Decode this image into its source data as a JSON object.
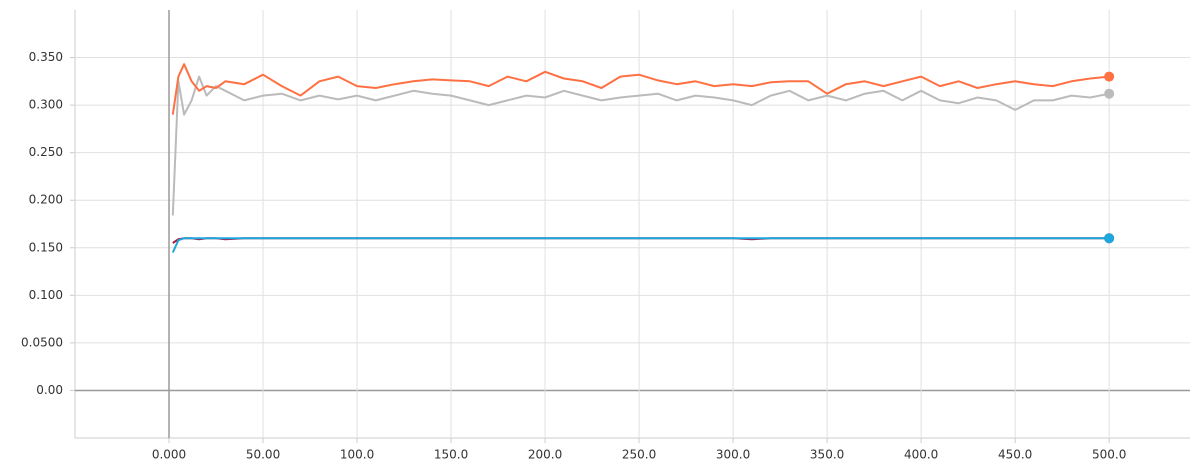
{
  "chart_data": {
    "type": "line",
    "x": [
      2,
      5,
      8,
      12,
      16,
      20,
      25,
      30,
      40,
      50,
      60,
      70,
      80,
      90,
      100,
      110,
      120,
      130,
      140,
      150,
      160,
      170,
      180,
      190,
      200,
      210,
      220,
      230,
      240,
      250,
      260,
      270,
      280,
      290,
      300,
      310,
      320,
      330,
      340,
      350,
      360,
      370,
      380,
      390,
      400,
      410,
      420,
      430,
      440,
      450,
      460,
      470,
      480,
      490,
      500
    ],
    "series": [
      {
        "color": "#bbbbbb",
        "values": [
          0.184,
          0.325,
          0.29,
          0.305,
          0.33,
          0.31,
          0.32,
          0.315,
          0.305,
          0.31,
          0.312,
          0.305,
          0.31,
          0.306,
          0.31,
          0.305,
          0.31,
          0.315,
          0.312,
          0.31,
          0.305,
          0.3,
          0.305,
          0.31,
          0.308,
          0.315,
          0.31,
          0.305,
          0.308,
          0.31,
          0.312,
          0.305,
          0.31,
          0.308,
          0.305,
          0.3,
          0.31,
          0.315,
          0.305,
          0.31,
          0.305,
          0.312,
          0.315,
          0.305,
          0.315,
          0.305,
          0.302,
          0.308,
          0.305,
          0.295,
          0.305,
          0.305,
          0.31,
          0.308,
          0.312
        ]
      },
      {
        "color": "#ff7043",
        "values": [
          0.29,
          0.33,
          0.343,
          0.325,
          0.315,
          0.32,
          0.318,
          0.325,
          0.322,
          0.332,
          0.32,
          0.31,
          0.325,
          0.33,
          0.32,
          0.318,
          0.322,
          0.325,
          0.327,
          0.326,
          0.325,
          0.32,
          0.33,
          0.325,
          0.335,
          0.328,
          0.325,
          0.318,
          0.33,
          0.332,
          0.326,
          0.322,
          0.325,
          0.32,
          0.322,
          0.32,
          0.324,
          0.325,
          0.325,
          0.312,
          0.322,
          0.325,
          0.32,
          0.325,
          0.33,
          0.32,
          0.325,
          0.318,
          0.322,
          0.325,
          0.322,
          0.32,
          0.325,
          0.328,
          0.33
        ]
      },
      {
        "color": "#b0173f",
        "values": [
          0.155,
          0.159,
          0.16,
          0.16,
          0.159,
          0.16,
          0.16,
          0.159,
          0.16,
          0.16,
          0.16,
          0.16,
          0.16,
          0.16,
          0.16,
          0.16,
          0.16,
          0.16,
          0.16,
          0.16,
          0.16,
          0.16,
          0.16,
          0.16,
          0.16,
          0.16,
          0.16,
          0.16,
          0.16,
          0.16,
          0.16,
          0.16,
          0.16,
          0.16,
          0.16,
          0.159,
          0.16,
          0.16,
          0.16,
          0.16,
          0.16,
          0.16,
          0.16,
          0.16,
          0.16,
          0.16,
          0.16,
          0.16,
          0.16,
          0.16,
          0.16,
          0.16,
          0.16,
          0.16,
          0.16
        ]
      },
      {
        "color": "#1ca8dd",
        "values": [
          0.145,
          0.158,
          0.16,
          0.16,
          0.16,
          0.16,
          0.16,
          0.16,
          0.16,
          0.16,
          0.16,
          0.16,
          0.16,
          0.16,
          0.16,
          0.16,
          0.16,
          0.16,
          0.16,
          0.16,
          0.16,
          0.16,
          0.16,
          0.16,
          0.16,
          0.16,
          0.16,
          0.16,
          0.16,
          0.16,
          0.16,
          0.16,
          0.16,
          0.16,
          0.16,
          0.16,
          0.16,
          0.16,
          0.16,
          0.16,
          0.16,
          0.16,
          0.16,
          0.16,
          0.16,
          0.16,
          0.16,
          0.16,
          0.16,
          0.16,
          0.16,
          0.16,
          0.16,
          0.16,
          0.16
        ]
      }
    ],
    "xlim": [
      -50,
      543
    ],
    "ylim": [
      -0.05,
      0.4
    ],
    "xticks": [
      {
        "value": 0,
        "label": "0.000"
      },
      {
        "value": 50,
        "label": "50.00"
      },
      {
        "value": 100,
        "label": "100.0"
      },
      {
        "value": 150,
        "label": "150.0"
      },
      {
        "value": 200,
        "label": "200.0"
      },
      {
        "value": 250,
        "label": "250.0"
      },
      {
        "value": 300,
        "label": "300.0"
      },
      {
        "value": 350,
        "label": "350.0"
      },
      {
        "value": 400,
        "label": "400.0"
      },
      {
        "value": 450,
        "label": "450.0"
      },
      {
        "value": 500,
        "label": "500.0"
      }
    ],
    "yticks": [
      {
        "value": 0,
        "label": "0.00"
      },
      {
        "value": 0.05,
        "label": "0.0500"
      },
      {
        "value": 0.1,
        "label": "0.100"
      },
      {
        "value": 0.15,
        "label": "0.150"
      },
      {
        "value": 0.2,
        "label": "0.200"
      },
      {
        "value": 0.25,
        "label": "0.250"
      },
      {
        "value": 0.3,
        "label": "0.300"
      },
      {
        "value": 0.35,
        "label": "0.350"
      }
    ],
    "grid": true
  }
}
